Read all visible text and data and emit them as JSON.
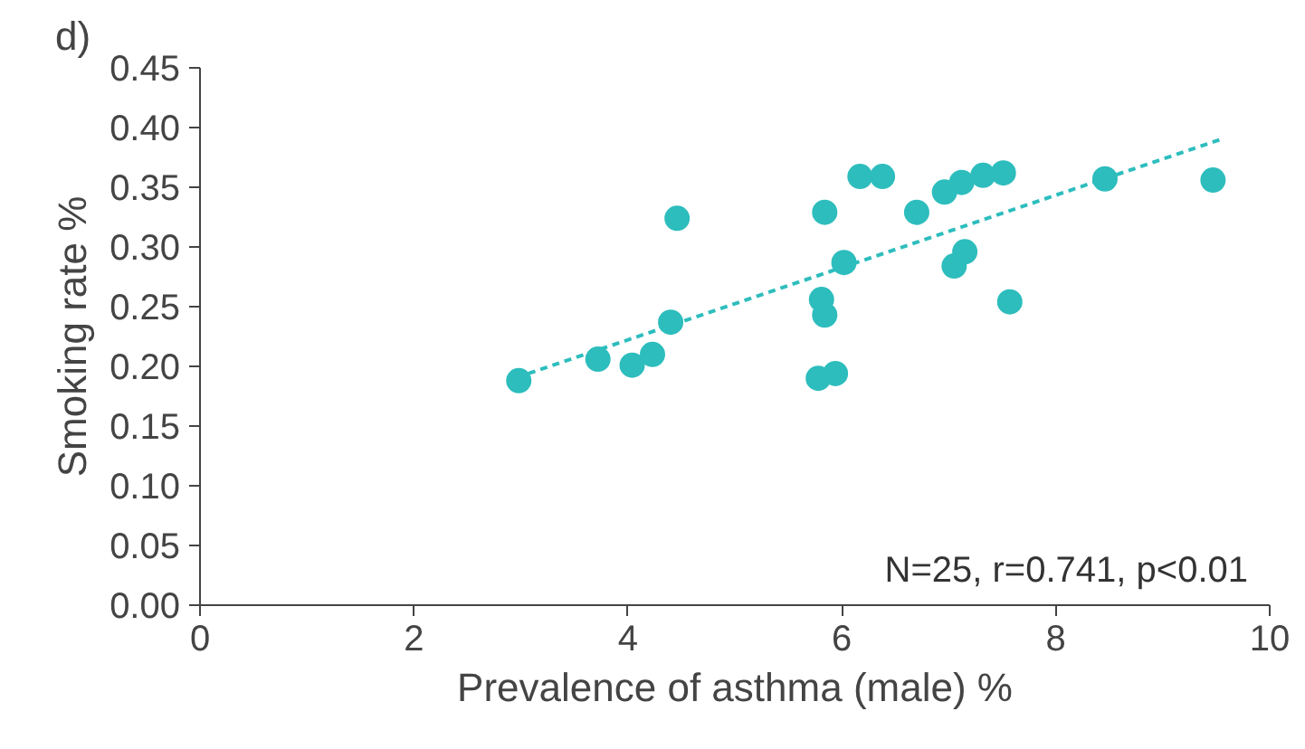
{
  "chart_data": {
    "type": "scatter",
    "title": "d)",
    "xlabel": "Prevalence of asthma (male) %",
    "ylabel": "Smoking rate %",
    "xlim": [
      0,
      10
    ],
    "xticks": [
      0,
      2,
      4,
      6,
      8,
      10
    ],
    "ylim": [
      0,
      0.45
    ],
    "yticks": [
      {
        "value": 0,
        "label": "0.00"
      },
      {
        "value": 0.05,
        "label": "0.05"
      },
      {
        "value": 0.1,
        "label": "0.10"
      },
      {
        "value": 0.15,
        "label": "0.15"
      },
      {
        "value": 0.2,
        "label": "0.20"
      },
      {
        "value": 0.25,
        "label": "0.25"
      },
      {
        "value": 0.3,
        "label": "0.30"
      },
      {
        "value": 0.35,
        "label": "0.35"
      },
      {
        "value": 0.4,
        "label": "0.40"
      },
      {
        "value": 0.45,
        "label": "0.45"
      }
    ],
    "grid": false,
    "annotations": [
      "N=25, r=0.741, p<0.01"
    ],
    "series": [
      {
        "marker": "circle",
        "color": "#2ebdbd",
        "x": [
          2.98,
          3.72,
          4.04,
          4.23,
          4.4,
          4.46,
          5.84,
          5.81,
          5.84,
          5.78,
          5.94,
          6.02,
          6.17,
          6.38,
          6.7,
          6.96,
          7.12,
          7.32,
          7.51,
          7.05,
          7.15,
          7.57,
          8.46,
          9.47
        ],
        "values": [
          0.188,
          0.206,
          0.201,
          0.21,
          0.237,
          0.324,
          0.329,
          0.256,
          0.243,
          0.19,
          0.194,
          0.287,
          0.359,
          0.359,
          0.329,
          0.346,
          0.354,
          0.36,
          0.362,
          0.284,
          0.296,
          0.254,
          0.357,
          0.356
        ]
      },
      {
        "type": "line",
        "color": "#2ebdbd",
        "line_style": "dashed",
        "x": [
          3.07,
          9.54
        ],
        "values": [
          0.194,
          0.39
        ]
      }
    ]
  }
}
